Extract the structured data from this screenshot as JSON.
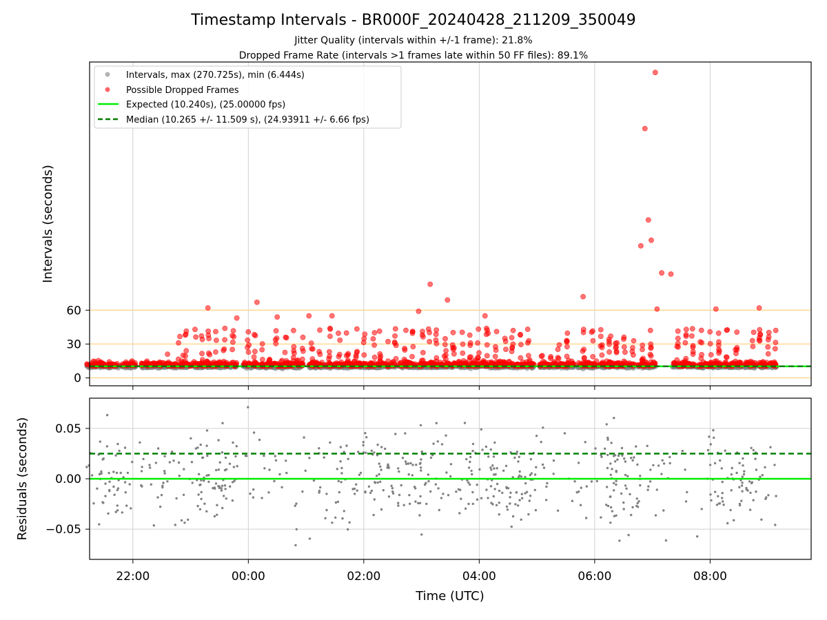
{
  "chart_data": [
    {
      "type": "scatter",
      "title": "Timestamp Intervals - BR000F_20240428_211209_350049",
      "subtitles": [
        "Jitter Quality (intervals within +/-1 frame): 21.8%",
        "Dropped Frame Rate (intervals >1 frames late within 50 FF files): 89.1%"
      ],
      "xlabel": "",
      "ylabel": "Intervals (seconds)",
      "xlim_hours": [
        -2.75,
        9.75
      ],
      "ylim": [
        -7,
        280
      ],
      "yticks": [
        0,
        30,
        60
      ],
      "ytick_labels": [
        "0",
        "30",
        "60"
      ],
      "xticks": [
        -2,
        0,
        2,
        4,
        6,
        8
      ],
      "reference_lines": [
        0,
        10,
        30,
        60
      ],
      "reference_line_color": "#ffd27f",
      "grid": "vertical",
      "legend_position": "upper-left",
      "legend": [
        "Intervals, max (270.725s), min (6.444s)",
        "Possible Dropped Frames",
        "Expected (10.240s), (25.00000 fps)",
        "Median (10.265 +/- 11.509 s), (24.93911 +/- 6.66 fps)"
      ],
      "expected": 10.24,
      "median": 10.265,
      "series": [
        {
          "name": "Intervals, max (270.725s), min (6.444s)",
          "color": "#808080",
          "sample_points": [
            [
              -2.8,
              10.1
            ],
            [
              -2.5,
              9.5
            ],
            [
              -2.2,
              10.3
            ],
            [
              -1.6,
              9.8
            ],
            [
              -1.2,
              10.4
            ],
            [
              -0.6,
              9.7
            ],
            [
              0.3,
              10.1
            ],
            [
              1.5,
              9.6
            ],
            [
              2.4,
              10.2
            ],
            [
              3.6,
              9.9
            ],
            [
              4.5,
              10.0
            ],
            [
              5.5,
              9.4
            ],
            [
              6.3,
              10.2
            ],
            [
              7.3,
              9.8
            ],
            [
              8.5,
              10.4
            ],
            [
              9.1,
              8.8
            ]
          ]
        },
        {
          "name": "Possible Dropped Frames",
          "color": "#ff0000",
          "peaks": [
            [
              -1.13,
              20
            ],
            [
              -1.4,
              21
            ],
            [
              -0.7,
              62
            ],
            [
              -0.2,
              53
            ],
            [
              0.15,
              67
            ],
            [
              0.5,
              54
            ],
            [
              1.05,
              55
            ],
            [
              1.45,
              55
            ],
            [
              2.95,
              59
            ],
            [
              3.15,
              83
            ],
            [
              3.45,
              69
            ],
            [
              4.1,
              55
            ],
            [
              5.8,
              72
            ],
            [
              6.8,
              117
            ],
            [
              6.87,
              221
            ],
            [
              6.93,
              140
            ],
            [
              6.98,
              122
            ],
            [
              7.05,
              270.7
            ],
            [
              7.08,
              61
            ],
            [
              7.16,
              93
            ],
            [
              7.32,
              92
            ],
            [
              8.1,
              61
            ],
            [
              8.85,
              62
            ]
          ]
        }
      ]
    },
    {
      "type": "scatter",
      "xlabel": "Time (UTC)",
      "ylabel": "Residuals (seconds)",
      "ylim": [
        -0.08,
        0.08
      ],
      "yticks": [
        -0.05,
        0,
        0.05
      ],
      "ytick_labels": [
        "−0.05",
        "0.00",
        "0.05"
      ],
      "xlim_hours": [
        -2.75,
        9.75
      ],
      "xticks": [
        -2,
        0,
        2,
        4,
        6,
        8
      ],
      "xtick_labels": [
        "22:00",
        "00:00",
        "02:00",
        "04:00",
        "06:00",
        "08:00"
      ],
      "grid": "both",
      "expected_residual": 0,
      "median_residual": 0.025,
      "series": [
        {
          "name": "",
          "color": "#808080",
          "clusters": [
            [
              -2.6,
              -2.0
            ],
            [
              -1.0,
              -0.2
            ],
            [
              1.5,
              3.0
            ],
            [
              3.8,
              5.0
            ],
            [
              6.2,
              6.8
            ],
            [
              8.0,
              9.0
            ]
          ]
        }
      ]
    }
  ],
  "colors": {
    "expected_line": "#00ee00",
    "median_line": "#007f00",
    "grid": "#d0d0d0"
  }
}
